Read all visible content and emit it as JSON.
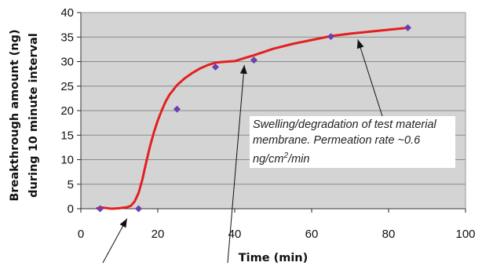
{
  "chart_data": {
    "type": "scatter",
    "xlabel": "Time (min)",
    "ylabel": [
      "Breakthrough amount (ng)",
      "during 10 minute interval"
    ],
    "xlim": [
      0,
      100
    ],
    "ylim": [
      0,
      40
    ],
    "xticks": [
      0,
      20,
      40,
      60,
      80,
      100
    ],
    "yticks": [
      0,
      5,
      10,
      15,
      20,
      25,
      30,
      35,
      40
    ],
    "grid": "horizontal",
    "background": "#d4d4d4",
    "marker_color": "#6a3fb0",
    "line_color": "#e41f1f",
    "points": [
      {
        "x": 5,
        "y": 0
      },
      {
        "x": 15,
        "y": 0
      },
      {
        "x": 25,
        "y": 20.3
      },
      {
        "x": 35,
        "y": 28.9
      },
      {
        "x": 45,
        "y": 30.3
      },
      {
        "x": 65,
        "y": 35.1
      },
      {
        "x": 85,
        "y": 36.9
      }
    ],
    "fit_curve": [
      [
        4,
        0
      ],
      [
        5,
        0.3
      ],
      [
        6,
        0.2
      ],
      [
        8,
        0
      ],
      [
        10,
        0.1
      ],
      [
        12,
        0.3
      ],
      [
        13,
        0.6
      ],
      [
        14,
        1.5
      ],
      [
        15,
        3.2
      ],
      [
        16,
        6
      ],
      [
        17,
        9.5
      ],
      [
        18,
        12.8
      ],
      [
        19,
        15.6
      ],
      [
        20,
        18
      ],
      [
        21,
        20
      ],
      [
        22,
        21.8
      ],
      [
        23,
        23.2
      ],
      [
        25,
        25.2
      ],
      [
        27,
        26.6
      ],
      [
        29,
        27.7
      ],
      [
        31,
        28.6
      ],
      [
        33,
        29.3
      ],
      [
        35,
        29.8
      ],
      [
        38,
        30
      ],
      [
        40,
        30.1
      ],
      [
        42,
        30.6
      ],
      [
        45,
        31.3
      ],
      [
        50,
        32.6
      ],
      [
        55,
        33.6
      ],
      [
        60,
        34.4
      ],
      [
        65,
        35.2
      ],
      [
        70,
        35.7
      ],
      [
        75,
        36.1
      ],
      [
        80,
        36.5
      ],
      [
        85,
        36.9
      ]
    ],
    "annotation": {
      "text_before": "Swelling/degradation of test material membrane. Permeation rate ~0.6 ng/cm",
      "superscript": "2",
      "text_after": "/min"
    }
  }
}
